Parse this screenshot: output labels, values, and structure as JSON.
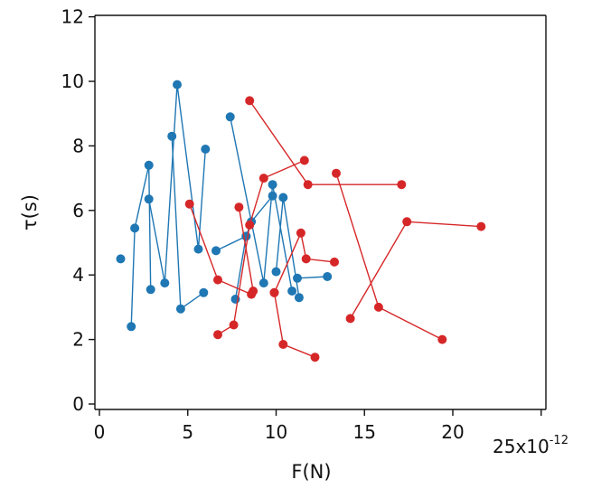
{
  "chart_data": {
    "type": "line",
    "title": "",
    "xlabel": "F(N)",
    "ylabel": "τ(s)",
    "x_scale_label": "25x10",
    "x_scale_exponent": "-12",
    "xlim": [
      0,
      25
    ],
    "ylim": [
      0,
      12
    ],
    "x_ticks": [
      0,
      5,
      10,
      15,
      20,
      25
    ],
    "x_tick_labels": [
      "0",
      "5",
      "10",
      "15",
      "20",
      ""
    ],
    "y_ticks": [
      0,
      2,
      4,
      6,
      8,
      10,
      12
    ],
    "y_tick_labels": [
      "0",
      "2",
      "4",
      "6",
      "8",
      "10",
      "12"
    ],
    "grid": false,
    "legend": "none",
    "series": [
      {
        "color": "#1f77b4",
        "segments": [
          [
            [
              1.2,
              4.5
            ]
          ],
          [
            [
              1.8,
              2.4
            ],
            [
              2.0,
              5.45
            ],
            [
              2.8,
              7.4
            ],
            [
              2.9,
              3.55
            ]
          ],
          [
            [
              2.8,
              6.35
            ],
            [
              3.7,
              3.75
            ],
            [
              4.4,
              9.9
            ],
            [
              5.6,
              4.8
            ],
            [
              6.0,
              7.9
            ]
          ],
          [
            [
              4.1,
              8.3
            ],
            [
              4.6,
              2.95
            ],
            [
              5.9,
              3.45
            ]
          ],
          [
            [
              7.4,
              8.9
            ],
            [
              9.3,
              3.75
            ],
            [
              9.8,
              6.8
            ],
            [
              10.9,
              3.5
            ]
          ],
          [
            [
              6.6,
              4.75
            ],
            [
              8.3,
              5.2
            ],
            [
              8.6,
              5.65
            ],
            [
              9.8,
              6.45
            ]
          ],
          [
            [
              7.7,
              3.25
            ],
            [
              8.3,
              5.2
            ]
          ],
          [
            [
              10.0,
              4.1
            ],
            [
              10.4,
              6.4
            ],
            [
              11.3,
              3.3
            ]
          ],
          [
            [
              11.2,
              3.9
            ],
            [
              12.9,
              3.95
            ]
          ]
        ]
      },
      {
        "color": "#d62728",
        "segments": [
          [
            [
              5.1,
              6.2
            ],
            [
              6.7,
              3.85
            ],
            [
              8.6,
              3.4
            ]
          ],
          [
            [
              6.7,
              2.15
            ],
            [
              7.6,
              2.45
            ],
            [
              8.5,
              5.55
            ],
            [
              9.3,
              7.0
            ],
            [
              11.6,
              7.55
            ]
          ],
          [
            [
              7.9,
              6.1
            ],
            [
              8.7,
              3.5
            ]
          ],
          [
            [
              8.5,
              9.4
            ],
            [
              11.8,
              6.8
            ],
            [
              17.1,
              6.8
            ]
          ],
          [
            [
              9.9,
              3.45
            ],
            [
              11.4,
              5.3
            ],
            [
              11.7,
              4.5
            ],
            [
              13.3,
              4.4
            ]
          ],
          [
            [
              9.9,
              3.45
            ],
            [
              10.4,
              1.85
            ],
            [
              12.2,
              1.45
            ]
          ],
          [
            [
              13.4,
              7.15
            ],
            [
              15.8,
              3.0
            ],
            [
              19.4,
              2.0
            ]
          ],
          [
            [
              14.2,
              2.65
            ],
            [
              17.4,
              5.65
            ],
            [
              21.6,
              5.5
            ]
          ]
        ]
      }
    ]
  }
}
